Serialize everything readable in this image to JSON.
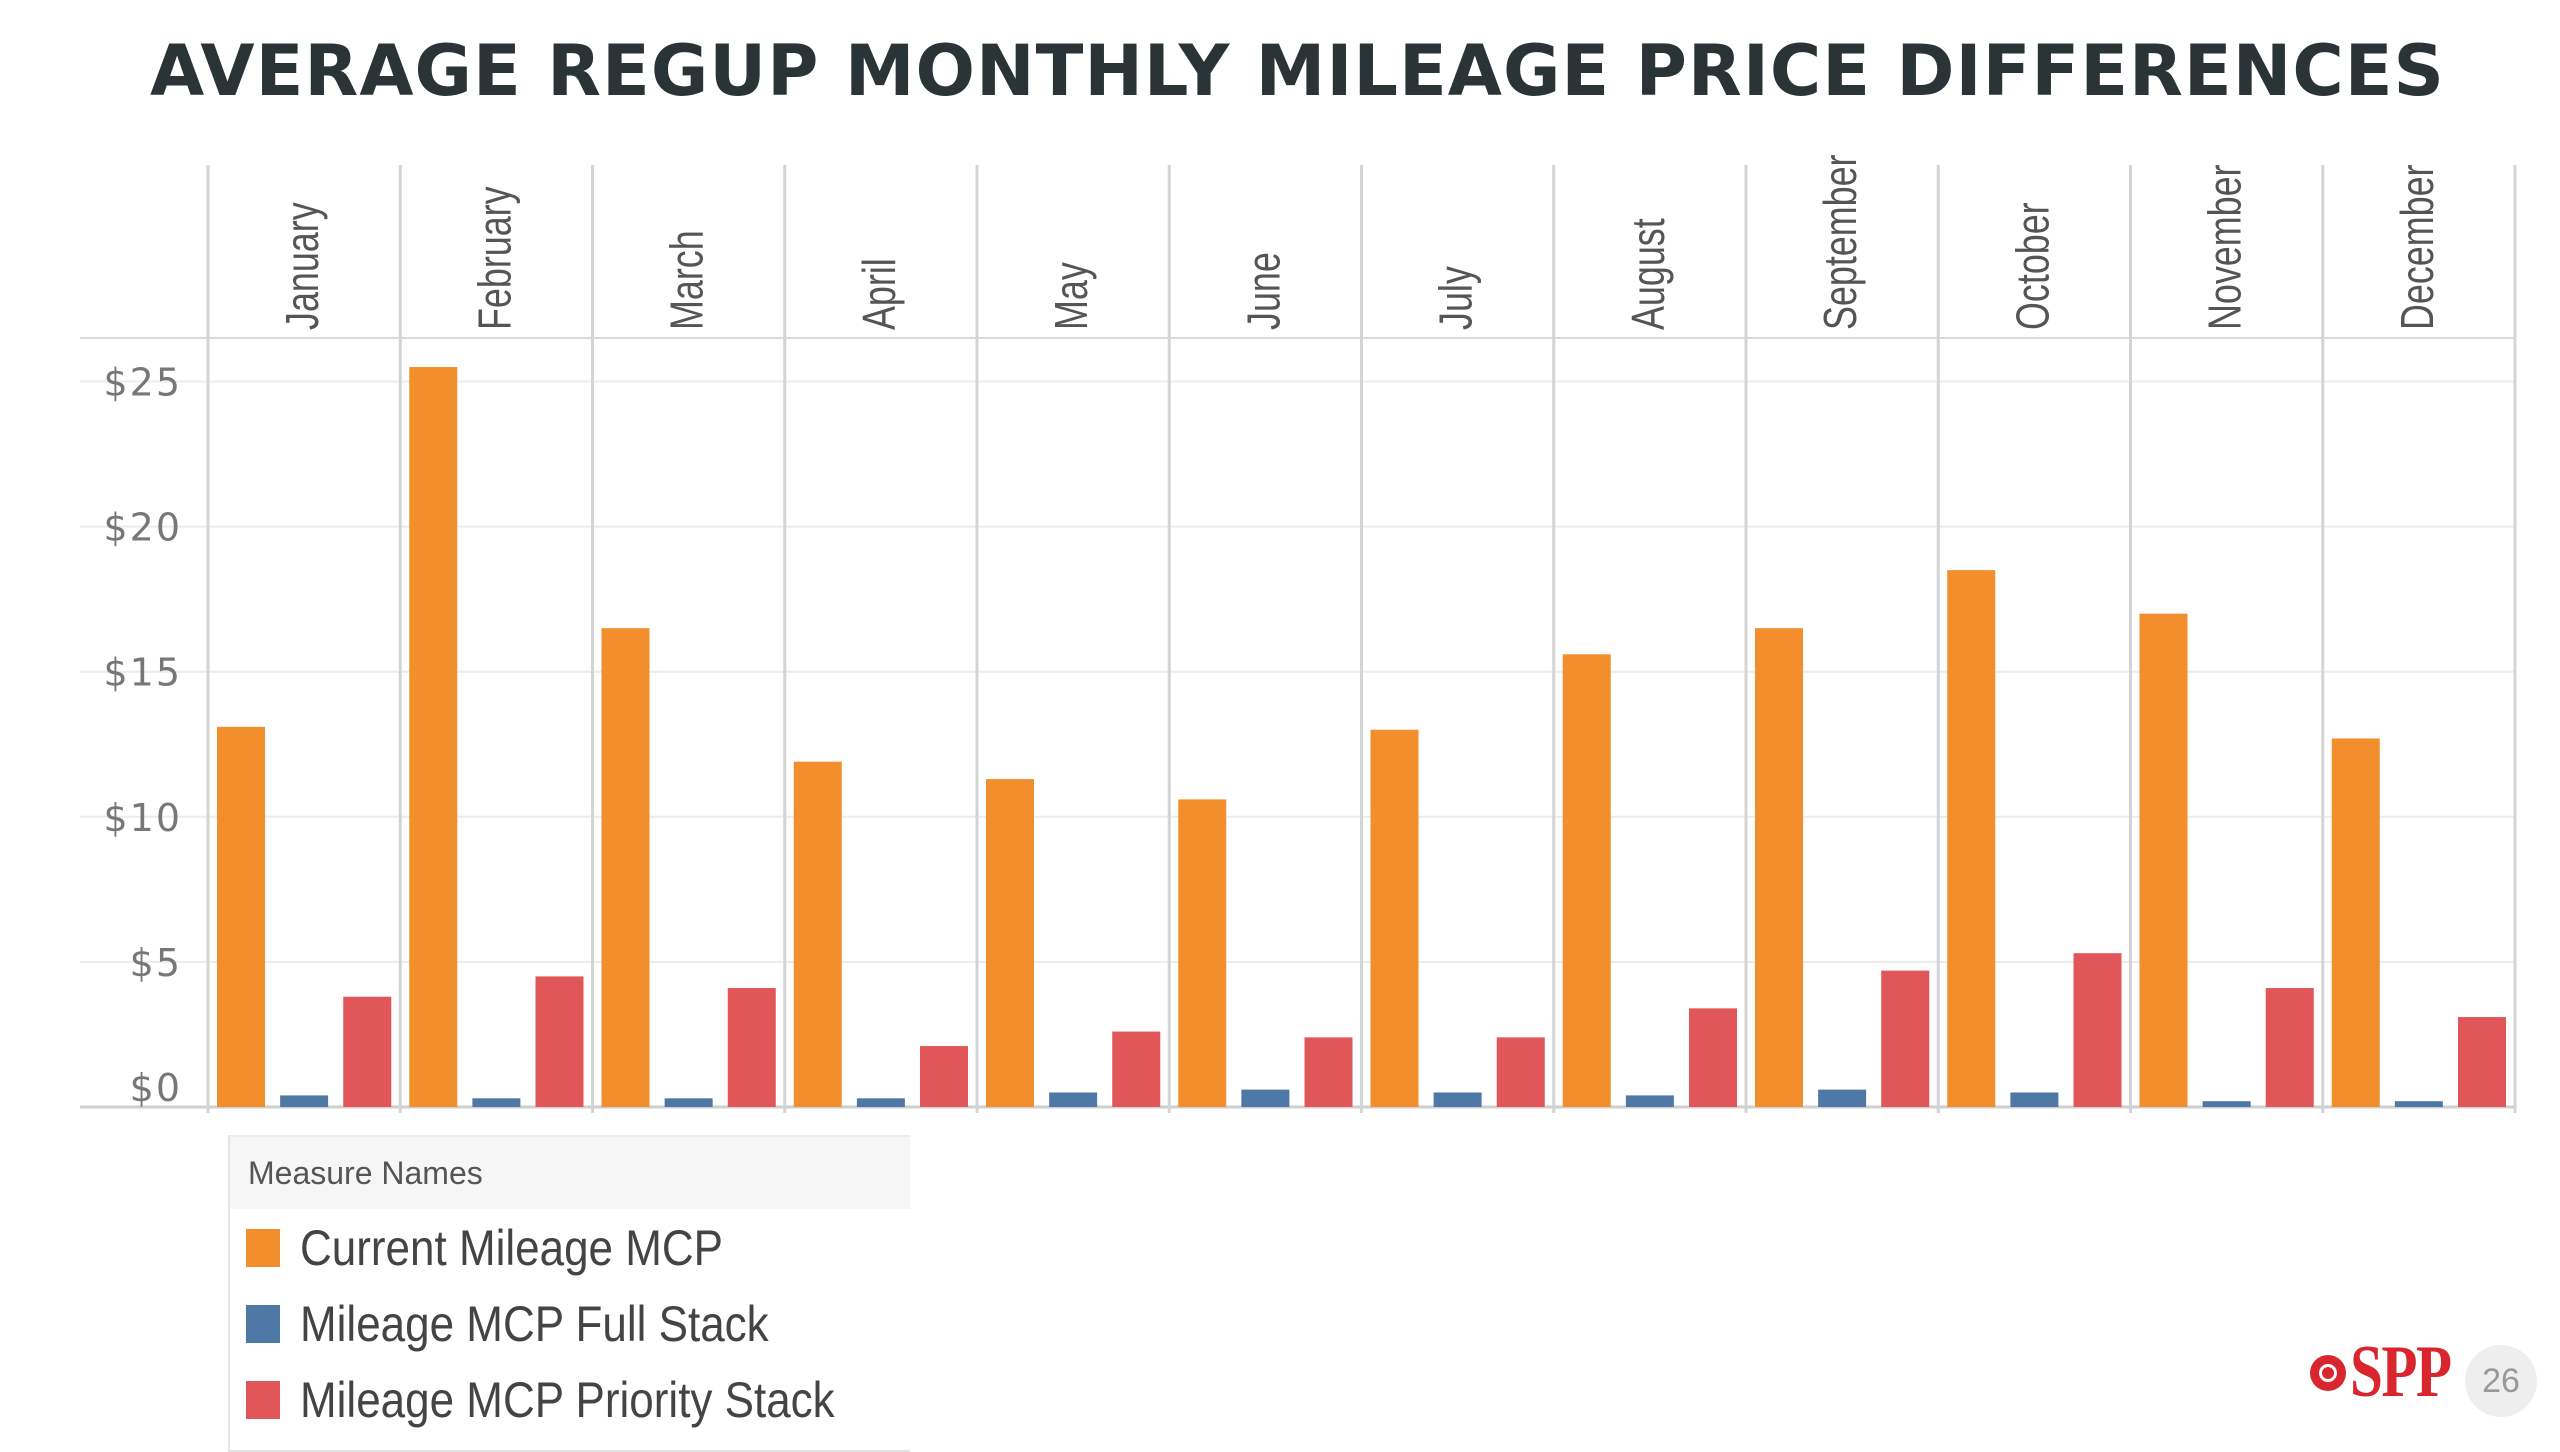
{
  "slide": {
    "title": "AVERAGE REGUP MONTHLY MILEAGE PRICE DIFFERENCES",
    "page_number": "26",
    "logo_text": "SPP"
  },
  "legend": {
    "title": "Measure Names",
    "items": [
      {
        "label": "Current Mileage MCP",
        "color": "#f28e2b"
      },
      {
        "label": "Mileage MCP Full Stack",
        "color": "#4e79a7"
      },
      {
        "label": "Mileage MCP Priority Stack",
        "color": "#e15759"
      }
    ]
  },
  "chart_data": {
    "type": "bar",
    "title": "AVERAGE REGUP MONTHLY MILEAGE PRICE DIFFERENCES",
    "categories": [
      "January",
      "February",
      "March",
      "April",
      "May",
      "June",
      "July",
      "August",
      "September",
      "October",
      "November",
      "December"
    ],
    "series": [
      {
        "name": "Current Mileage MCP",
        "color": "#f28e2b",
        "values": [
          13.1,
          25.5,
          16.5,
          11.9,
          11.3,
          10.6,
          13.0,
          15.6,
          16.5,
          18.5,
          17.0,
          12.7
        ]
      },
      {
        "name": "Mileage MCP Full Stack",
        "color": "#4e79a7",
        "values": [
          0.4,
          0.3,
          0.3,
          0.3,
          0.5,
          0.6,
          0.5,
          0.4,
          0.6,
          0.5,
          0.2,
          0.2
        ]
      },
      {
        "name": "Mileage MCP Priority Stack",
        "color": "#e15759",
        "values": [
          3.8,
          4.5,
          4.1,
          2.1,
          2.6,
          2.4,
          2.4,
          3.4,
          4.7,
          5.3,
          4.1,
          3.1
        ]
      }
    ],
    "y_ticks": [
      "$0",
      "$5",
      "$10",
      "$15",
      "$20",
      "$25"
    ],
    "y_tick_values": [
      0,
      5,
      10,
      15,
      20,
      25
    ],
    "ylim": [
      0,
      26.5
    ],
    "grid": true,
    "legend_position": "bottom-left"
  }
}
